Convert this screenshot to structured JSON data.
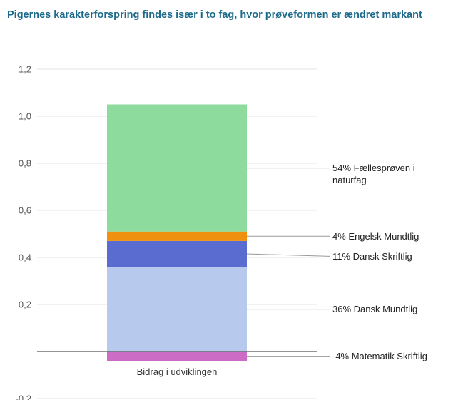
{
  "colors": {
    "title": "#1d6b8a",
    "grid": "#e6e6e6",
    "zero_line": "#555555",
    "leader": "#9a9a9a"
  },
  "chart_data": {
    "type": "bar",
    "title": "Pigernes karakterforspring findes især i to fag, hvor prøveformen er ændret markant",
    "xlabel": "",
    "ylabel": "",
    "stacked": true,
    "categories": [
      "Bidrag i udviklingen"
    ],
    "ylim": [
      -0.2,
      1.2
    ],
    "yticks": [
      -0.2,
      0.0,
      0.2,
      0.4,
      0.6,
      0.8,
      1.0,
      1.2
    ],
    "ytick_labels": [
      "-0,2",
      "",
      "0,2",
      "0,4",
      "0,6",
      "0,8",
      "1,0",
      "1,2"
    ],
    "grid": true,
    "series": [
      {
        "label": "36% Dansk Mundtlig",
        "values": [
          0.36
        ],
        "color": "#b8c9ee"
      },
      {
        "label": "11% Dansk Skriftlig",
        "values": [
          0.11
        ],
        "color": "#5a6ccf"
      },
      {
        "label": "4% Engelsk Mundtlig",
        "values": [
          0.04
        ],
        "color": "#f0900f"
      },
      {
        "label": "54% Fællesprøven i naturfag",
        "values": [
          0.54
        ],
        "color": "#8ddb9d"
      },
      {
        "label": "-4% Matematik Skriftlig",
        "values": [
          -0.04
        ],
        "color": "#cc6cc4"
      }
    ]
  }
}
